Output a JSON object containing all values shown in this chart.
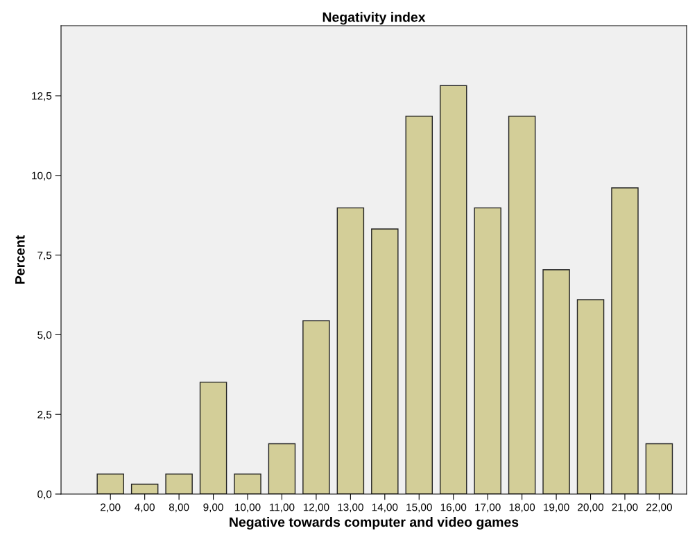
{
  "chart_data": {
    "type": "bar",
    "title": "Negativity index",
    "xlabel": "Negative towards computer and video games",
    "ylabel": "Percent",
    "categories": [
      "2,00",
      "4,00",
      "8,00",
      "9,00",
      "10,00",
      "11,00",
      "12,00",
      "13,00",
      "14,00",
      "15,00",
      "16,00",
      "17,00",
      "18,00",
      "19,00",
      "20,00",
      "21,00",
      "22,00"
    ],
    "values": [
      0.63,
      0.31,
      0.63,
      3.51,
      0.63,
      1.58,
      5.44,
      8.98,
      8.32,
      11.86,
      12.82,
      8.98,
      11.86,
      7.04,
      6.1,
      9.61,
      1.58
    ],
    "color": "#d3ce98",
    "ylim": [
      0,
      14.7
    ],
    "yticks": [
      {
        "value": 0,
        "label": "0,0"
      },
      {
        "value": 2.5,
        "label": "2,5"
      },
      {
        "value": 5,
        "label": "5,0"
      },
      {
        "value": 7.5,
        "label": "7,5"
      },
      {
        "value": 10,
        "label": "10,0"
      },
      {
        "value": 12.5,
        "label": "12,5"
      }
    ],
    "grid": false
  }
}
